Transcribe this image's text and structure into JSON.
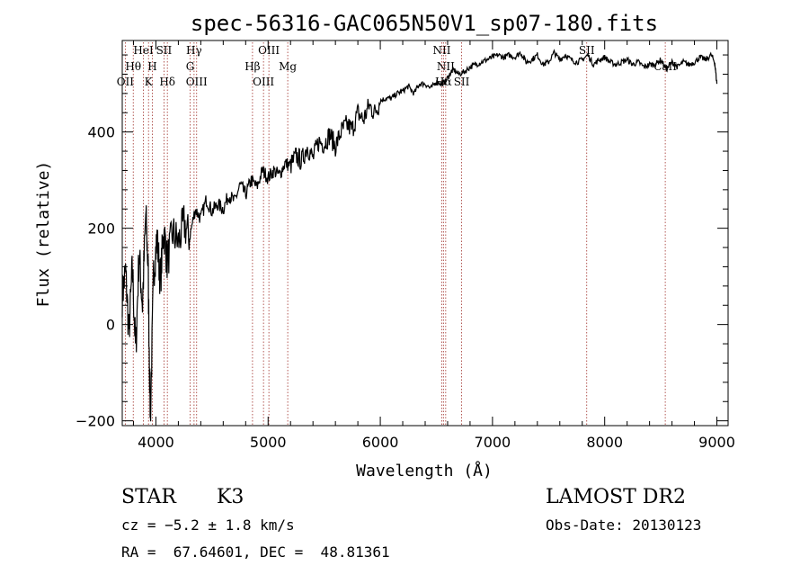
{
  "chart_data": {
    "type": "line",
    "title": "spec-56316-GAC065N50V1_sp07-180.fits",
    "xlabel": "Wavelength (Å)",
    "ylabel": "Flux (relative)",
    "xlim": [
      3700,
      9100
    ],
    "ylim": [
      -210,
      590
    ],
    "xticks": [
      4000,
      5000,
      6000,
      7000,
      8000,
      9000
    ],
    "yticks": [
      -200,
      0,
      200,
      400
    ],
    "grid": false,
    "series": [
      {
        "color": "#000000",
        "x": [
          3700,
          3730,
          3760,
          3790,
          3820,
          3850,
          3880,
          3910,
          3930,
          3950,
          3980,
          4010,
          4040,
          4070,
          4100,
          4150,
          4200,
          4250,
          4300,
          4350,
          4400,
          4450,
          4500,
          4550,
          4600,
          4650,
          4700,
          4750,
          4800,
          4850,
          4900,
          4950,
          5000,
          5050,
          5100,
          5150,
          5200,
          5250,
          5300,
          5350,
          5400,
          5450,
          5500,
          5550,
          5600,
          5650,
          5700,
          5750,
          5800,
          5850,
          5900,
          5950,
          6000,
          6050,
          6100,
          6150,
          6200,
          6250,
          6300,
          6350,
          6400,
          6450,
          6500,
          6550,
          6580,
          6620,
          6650,
          6700,
          6750,
          6800,
          6850,
          6900,
          6950,
          7000,
          7050,
          7100,
          7150,
          7200,
          7250,
          7300,
          7350,
          7400,
          7450,
          7500,
          7550,
          7600,
          7650,
          7700,
          7750,
          7800,
          7850,
          7900,
          7950,
          8000,
          8050,
          8100,
          8150,
          8200,
          8250,
          8300,
          8350,
          8400,
          8450,
          8500,
          8550,
          8600,
          8650,
          8700,
          8750,
          8800,
          8850,
          8900,
          8950,
          8980,
          9000
        ],
        "y": [
          60,
          110,
          -20,
          120,
          -60,
          150,
          40,
          230,
          120,
          -200,
          110,
          180,
          90,
          200,
          130,
          190,
          170,
          210,
          180,
          240,
          220,
          260,
          235,
          250,
          240,
          270,
          255,
          290,
          270,
          300,
          285,
          320,
          305,
          320,
          310,
          335,
          330,
          350,
          340,
          370,
          345,
          380,
          375,
          395,
          370,
          400,
          415,
          405,
          440,
          425,
          455,
          440,
          465,
          470,
          470,
          480,
          485,
          495,
          480,
          500,
          500,
          490,
          505,
          500,
          505,
          520,
          530,
          520,
          525,
          535,
          540,
          545,
          550,
          555,
          560,
          555,
          560,
          555,
          565,
          545,
          550,
          560,
          540,
          545,
          565,
          550,
          560,
          550,
          545,
          550,
          560,
          540,
          550,
          555,
          545,
          540,
          545,
          550,
          540,
          545,
          535,
          540,
          540,
          550,
          530,
          545,
          535,
          545,
          540,
          545,
          555,
          550,
          560,
          545,
          500
        ]
      }
    ],
    "lines": [
      {
        "name": "OII",
        "x": 3727,
        "row": 3
      },
      {
        "name": "Hθ",
        "x": 3798,
        "row": 2
      },
      {
        "name": "HeI",
        "x": 3889,
        "row": 1
      },
      {
        "name": "K",
        "x": 3934,
        "row": 3
      },
      {
        "name": "H",
        "x": 3968,
        "row": 2
      },
      {
        "name": "SII",
        "x": 4072,
        "row": 1
      },
      {
        "name": "Hδ",
        "x": 4102,
        "row": 3
      },
      {
        "name": "Hγ",
        "x": 4340,
        "row": 1
      },
      {
        "name": "G",
        "x": 4305,
        "row": 2
      },
      {
        "name": "OIII",
        "x": 4363,
        "row": 3
      },
      {
        "name": "Hβ",
        "x": 4861,
        "row": 2
      },
      {
        "name": "OIII",
        "x": 4959,
        "row": 3
      },
      {
        "name": "OIII",
        "x": 5007,
        "row": 1
      },
      {
        "name": "Mg",
        "x": 5175,
        "row": 2
      },
      {
        "name": "NII",
        "x": 6548,
        "row": 1
      },
      {
        "name": "NII",
        "x": 6583,
        "row": 2
      },
      {
        "name": "Hα",
        "x": 6563,
        "row": 3
      },
      {
        "name": "SII",
        "x": 6725,
        "row": 3
      },
      {
        "name": "SII",
        "x": 7840,
        "row": 1
      },
      {
        "name": "CaII",
        "x": 8540,
        "row": 2
      }
    ]
  },
  "info": {
    "class": "STAR",
    "subclass": "K3",
    "cz": "cz = −5.2 ± 1.8 km/s",
    "coords": "RA =  67.64601, DEC =  48.81361",
    "survey": "LAMOST DR2",
    "obs_date": "Obs-Date: 20130123"
  }
}
